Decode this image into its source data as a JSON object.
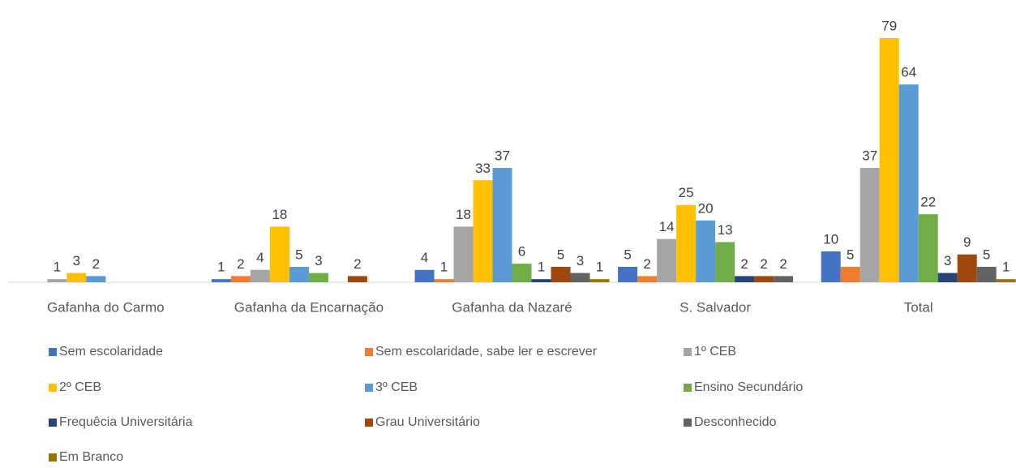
{
  "chart_data": {
    "type": "bar",
    "categories": [
      "Gafanha do Carmo",
      "Gafanha da Encarnação",
      "Gafanha da Nazaré",
      "S. Salvador",
      "Total"
    ],
    "series": [
      {
        "name": "Sem escolaridade",
        "color": "#4472c4",
        "values": [
          null,
          1,
          4,
          5,
          10
        ]
      },
      {
        "name": "Sem escolaridade, sabe ler e escrever",
        "color": "#ed7d31",
        "values": [
          null,
          2,
          1,
          2,
          5
        ]
      },
      {
        "name": "1º CEB",
        "color": "#a5a5a5",
        "values": [
          1,
          4,
          18,
          14,
          37
        ]
      },
      {
        "name": "2º CEB",
        "color": "#ffc000",
        "values": [
          3,
          18,
          33,
          25,
          79
        ]
      },
      {
        "name": "3º CEB",
        "color": "#5b9bd5",
        "values": [
          2,
          5,
          37,
          20,
          64
        ]
      },
      {
        "name": "Ensino Secundário",
        "color": "#70ad47",
        "values": [
          null,
          3,
          6,
          13,
          22
        ]
      },
      {
        "name": "Frequêcia Universitária",
        "color": "#264478",
        "values": [
          null,
          null,
          1,
          2,
          3
        ]
      },
      {
        "name": "Grau Universitário",
        "color": "#9e480e",
        "values": [
          null,
          2,
          5,
          2,
          9
        ]
      },
      {
        "name": "Desconhecido",
        "color": "#636363",
        "values": [
          null,
          null,
          3,
          2,
          5
        ]
      },
      {
        "name": "Em Branco",
        "color": "#997300",
        "values": [
          null,
          null,
          1,
          null,
          1
        ]
      }
    ]
  }
}
